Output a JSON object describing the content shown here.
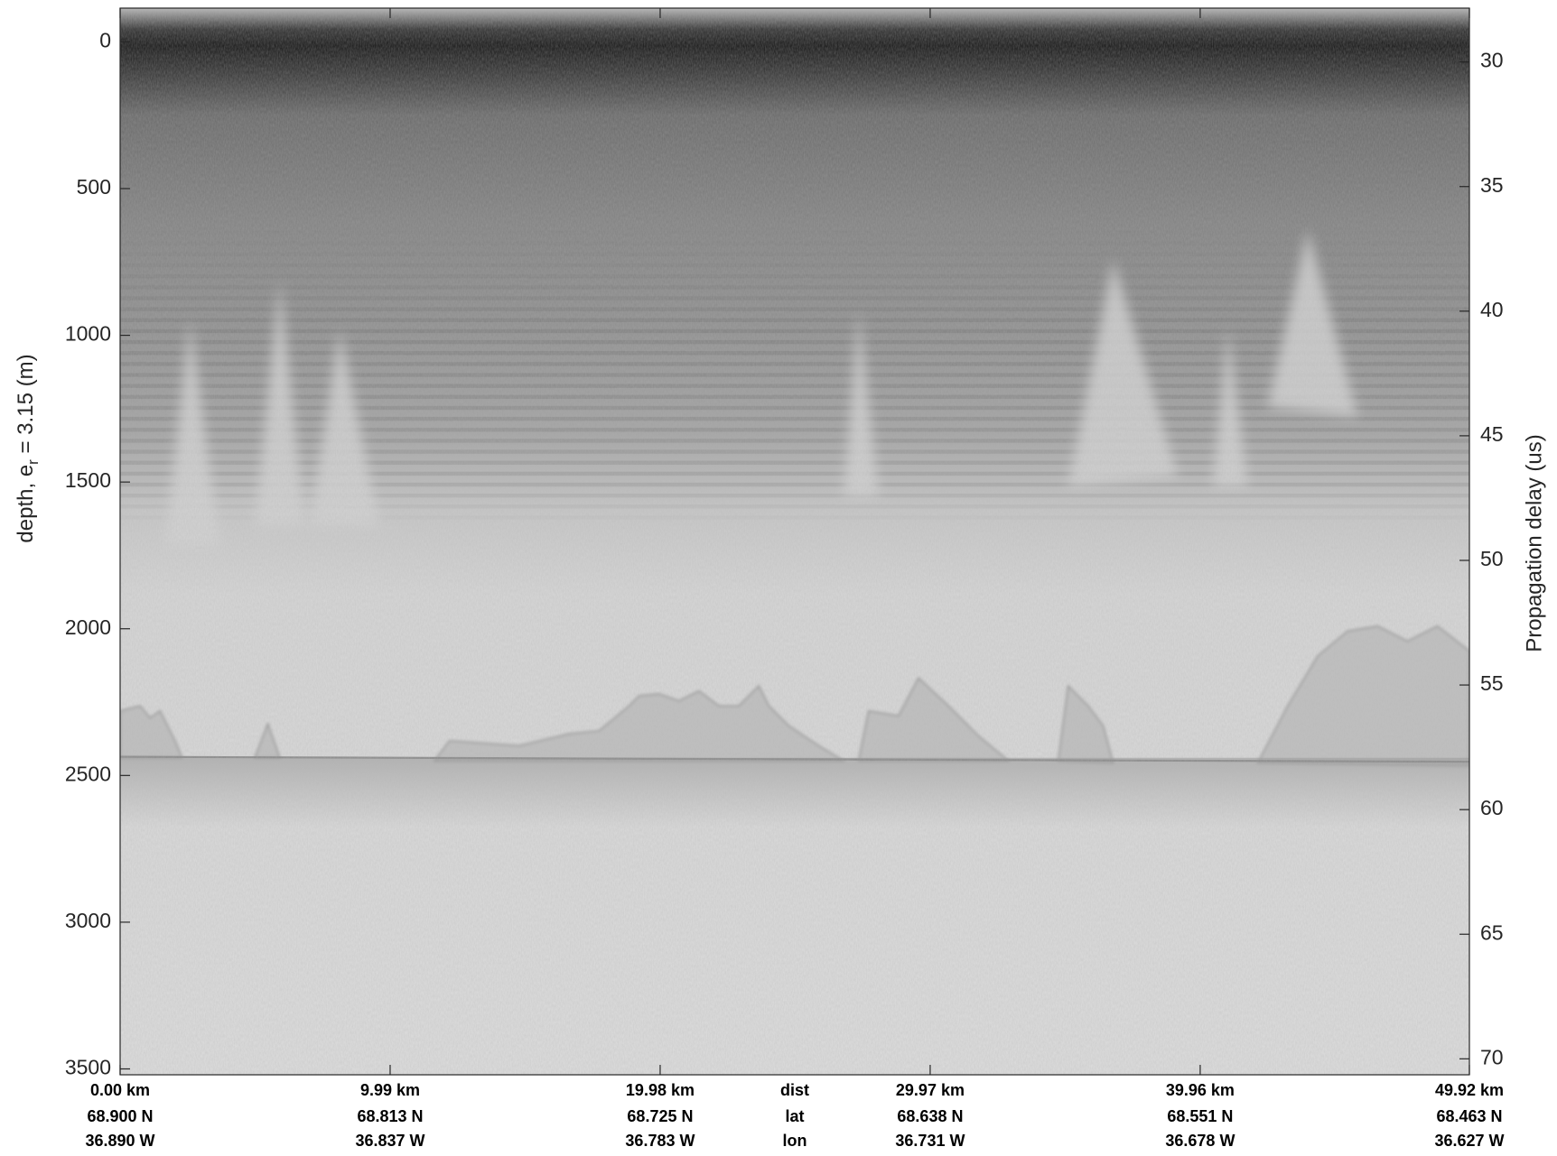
{
  "chart_data": {
    "type": "radargram",
    "xlim": [
      0,
      49.92
    ],
    "xticks": [
      {
        "value": 0,
        "label": "0.00 km"
      },
      {
        "value": 9.99,
        "label": "9.99 km"
      },
      {
        "value": 19.98,
        "label": "19.98 km"
      },
      {
        "value": 29.97,
        "label": "29.97 km"
      },
      {
        "value": 39.96,
        "label": "39.96 km"
      },
      {
        "value": 49.92,
        "label": "49.92 km"
      }
    ],
    "xlabel": "dist",
    "lat": {
      "label": "lat",
      "ticks": [
        "68.900 N",
        "68.813 N",
        "68.725 N",
        "68.638 N",
        "68.551 N",
        "68.463 N"
      ]
    },
    "lon": {
      "label": "lon",
      "ticks": [
        "36.890 W",
        "36.837 W",
        "36.783 W",
        "36.731 W",
        "36.678 W",
        "36.627 W"
      ]
    },
    "ylabel": {
      "text": "depth, e",
      "subscript": "r",
      "rest": " = 3.15 (m)"
    },
    "ylim": [
      3520,
      -115
    ],
    "yticks": [
      0,
      500,
      1000,
      1500,
      2000,
      2500,
      3000,
      3500
    ],
    "y2label": "Propagation delay (us)",
    "y2lim": [
      70.64,
      27.84
    ],
    "y2ticks": [
      30,
      35,
      40,
      45,
      50,
      55,
      60,
      65,
      70
    ]
  }
}
